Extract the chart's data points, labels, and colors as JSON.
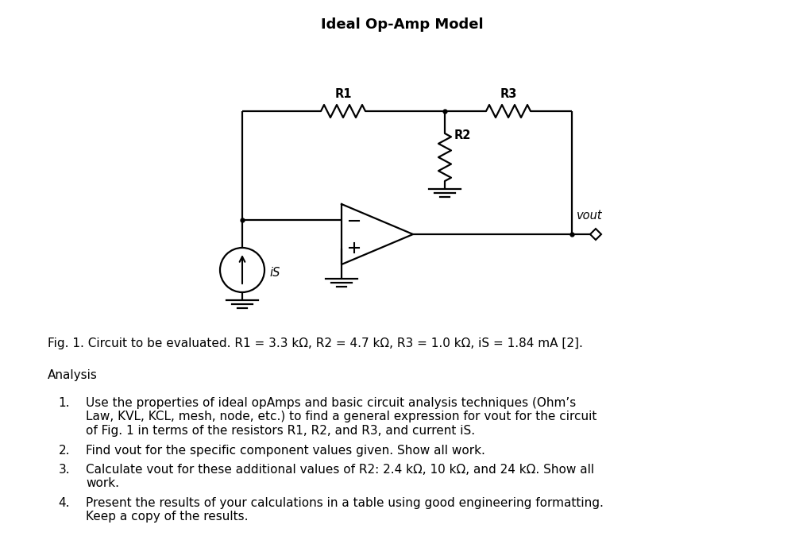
{
  "title": "Ideal Op-Amp Model",
  "title_fontsize": 13,
  "fig_caption": "Fig. 1. Circuit to be evaluated. R1 = 3.3 kΩ, R2 = 4.7 kΩ, R3 = 1.0 kΩ, iS = 1.84 mA [2].",
  "analysis_header": "Analysis",
  "analysis_items": [
    "Use the properties of ideal opAmps and basic circuit analysis techniques (Ohm’s\nLaw, KVL, KCL, mesh, node, etc.) to find a general expression for vout for the circuit\nof Fig. 1 in terms of the resistors R1, R2, and R3, and current iS.",
    "Find vout for the specific component values given. Show all work.",
    "Calculate vout for these additional values of R2: 2.4 kΩ, 10 kΩ, and 24 kΩ. Show all\nwork.",
    "Present the results of your calculations in a table using good engineering formatting.\nKeep a copy of the results."
  ],
  "bg_color": "#ffffff",
  "line_color": "#000000",
  "text_color": "#000000",
  "circuit_lw": 1.6,
  "resistor_zigs": 7,
  "font_size_body": 11,
  "font_size_label": 10.5
}
